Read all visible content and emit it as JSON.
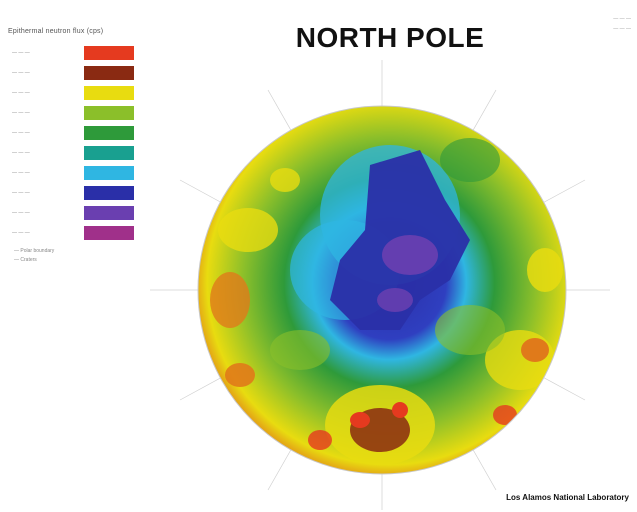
{
  "title": "NORTH POLE",
  "lab": "Los Alamos National Laboratory",
  "legend": {
    "title": "Epithermal neutron flux (cps)",
    "items": [
      {
        "range": "— — —",
        "color": "#e53a1f"
      },
      {
        "range": "— — —",
        "color": "#8a2a12"
      },
      {
        "range": "— — —",
        "color": "#e8dc10"
      },
      {
        "range": "— — —",
        "color": "#8bbf2a"
      },
      {
        "range": "— — —",
        "color": "#2e9a3a"
      },
      {
        "range": "— — —",
        "color": "#19a090"
      },
      {
        "range": "— — —",
        "color": "#2fb6e2"
      },
      {
        "range": "— — —",
        "color": "#2a2fa8"
      },
      {
        "range": "— — —",
        "color": "#6a3fb0"
      },
      {
        "range": "— — —",
        "color": "#a0308a"
      }
    ],
    "notes": [
      "— Polar boundary",
      "— Craters"
    ]
  },
  "scale": {
    "line1": "— — —",
    "line2": "— — —"
  },
  "colors": {
    "background": "#ffffff",
    "title": "#111111"
  }
}
